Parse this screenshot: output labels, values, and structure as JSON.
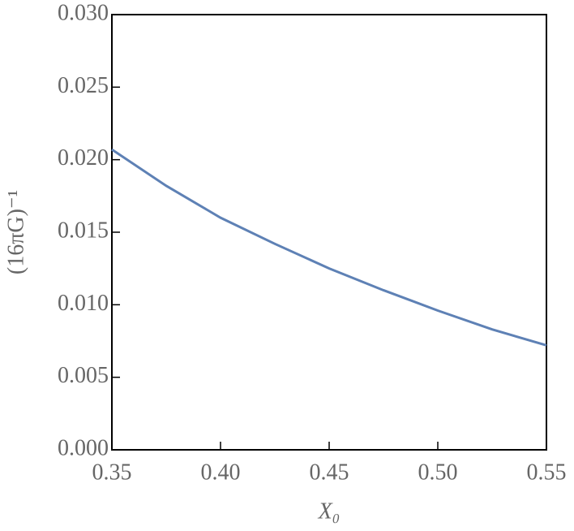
{
  "chart_data": {
    "type": "line",
    "x_label": "X₀",
    "y_label": "(16πG)⁻¹",
    "x": [
      0.35,
      0.375,
      0.4,
      0.425,
      0.45,
      0.475,
      0.5,
      0.525,
      0.55
    ],
    "series": [
      {
        "color": "#5e81b5",
        "values": [
          0.0207,
          0.0182,
          0.016,
          0.0142,
          0.0125,
          0.011,
          0.0096,
          0.0083,
          0.0072
        ]
      }
    ],
    "xlim": [
      0.35,
      0.55
    ],
    "ylim": [
      0,
      0.03
    ],
    "xticks": [
      0.35,
      {
        "value": 0.4,
        "label": "0.40"
      },
      0.45,
      {
        "value": 0.5,
        "label": "0.50"
      },
      0.55
    ],
    "yticks": [
      {
        "value": 0,
        "label": "0.000"
      },
      0.005,
      {
        "value": 0.01,
        "label": "0.010"
      },
      0.015,
      {
        "value": 0.02,
        "label": "0.020"
      },
      0.025,
      {
        "value": 0.03,
        "label": "0.030"
      }
    ]
  }
}
